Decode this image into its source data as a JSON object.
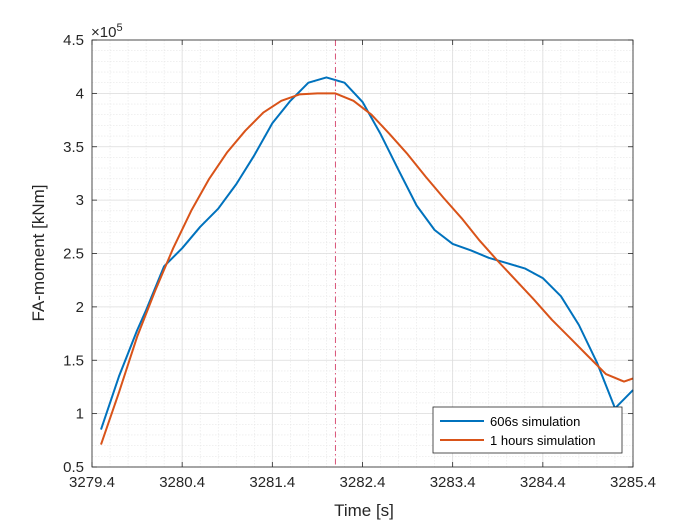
{
  "chart_data": {
    "type": "line",
    "title": "",
    "xlabel": "Time [s]",
    "ylabel": "FA-moment [kNm]",
    "y_exponent_label": "×10",
    "y_exponent_power": "5",
    "xlim": [
      3279.4,
      3285.4
    ],
    "ylim": [
      0.5,
      4.5
    ],
    "y_scale_factor": 100000,
    "x_ticks": [
      3279.4,
      3280.4,
      3281.4,
      3282.4,
      3283.4,
      3284.4,
      3285.4
    ],
    "x_tick_labels": [
      "3279.4",
      "3280.4",
      "3281.4",
      "3282.4",
      "3283.4",
      "3284.4",
      "3285.4"
    ],
    "y_ticks": [
      0.5,
      1,
      1.5,
      2,
      2.5,
      3,
      3.5,
      4,
      4.5
    ],
    "y_tick_labels": [
      "0.5",
      "1",
      "1.5",
      "2",
      "2.5",
      "3",
      "3.5",
      "4",
      "4.5"
    ],
    "grid": "major and minor",
    "legend_position": "bottom-right",
    "vertical_marker_x": 3282.1,
    "series": [
      {
        "name": "606s simulation",
        "color": "#0072BD",
        "x": [
          3279.5,
          3279.7,
          3279.9,
          3280.0,
          3280.2,
          3280.4,
          3280.6,
          3280.8,
          3281.0,
          3281.2,
          3281.4,
          3281.6,
          3281.8,
          3282.0,
          3282.2,
          3282.4,
          3282.6,
          3282.8,
          3283.0,
          3283.2,
          3283.4,
          3283.6,
          3283.8,
          3284.0,
          3284.2,
          3284.4,
          3284.6,
          3284.8,
          3285.0,
          3285.2,
          3285.4
        ],
        "y": [
          0.85,
          1.35,
          1.78,
          1.97,
          2.38,
          2.55,
          2.75,
          2.92,
          3.15,
          3.42,
          3.72,
          3.93,
          4.1,
          4.15,
          4.1,
          3.92,
          3.62,
          3.28,
          2.95,
          2.72,
          2.59,
          2.53,
          2.46,
          2.41,
          2.36,
          2.27,
          2.1,
          1.83,
          1.48,
          1.05,
          1.22
        ]
      },
      {
        "name": "1 hours simulation",
        "color": "#D95319",
        "x": [
          3279.5,
          3279.7,
          3279.9,
          3280.1,
          3280.3,
          3280.5,
          3280.7,
          3280.9,
          3281.1,
          3281.3,
          3281.5,
          3281.7,
          3281.9,
          3282.1,
          3282.3,
          3282.5,
          3282.7,
          3282.9,
          3283.1,
          3283.3,
          3283.5,
          3283.7,
          3283.9,
          3284.1,
          3284.3,
          3284.5,
          3284.7,
          3284.9,
          3285.1,
          3285.3,
          3285.4
        ],
        "y": [
          0.71,
          1.2,
          1.72,
          2.15,
          2.55,
          2.9,
          3.2,
          3.45,
          3.65,
          3.82,
          3.93,
          3.99,
          4.0,
          4.0,
          3.93,
          3.8,
          3.62,
          3.43,
          3.22,
          3.02,
          2.83,
          2.62,
          2.43,
          2.25,
          2.07,
          1.88,
          1.71,
          1.54,
          1.37,
          1.3,
          1.33
        ]
      }
    ]
  }
}
